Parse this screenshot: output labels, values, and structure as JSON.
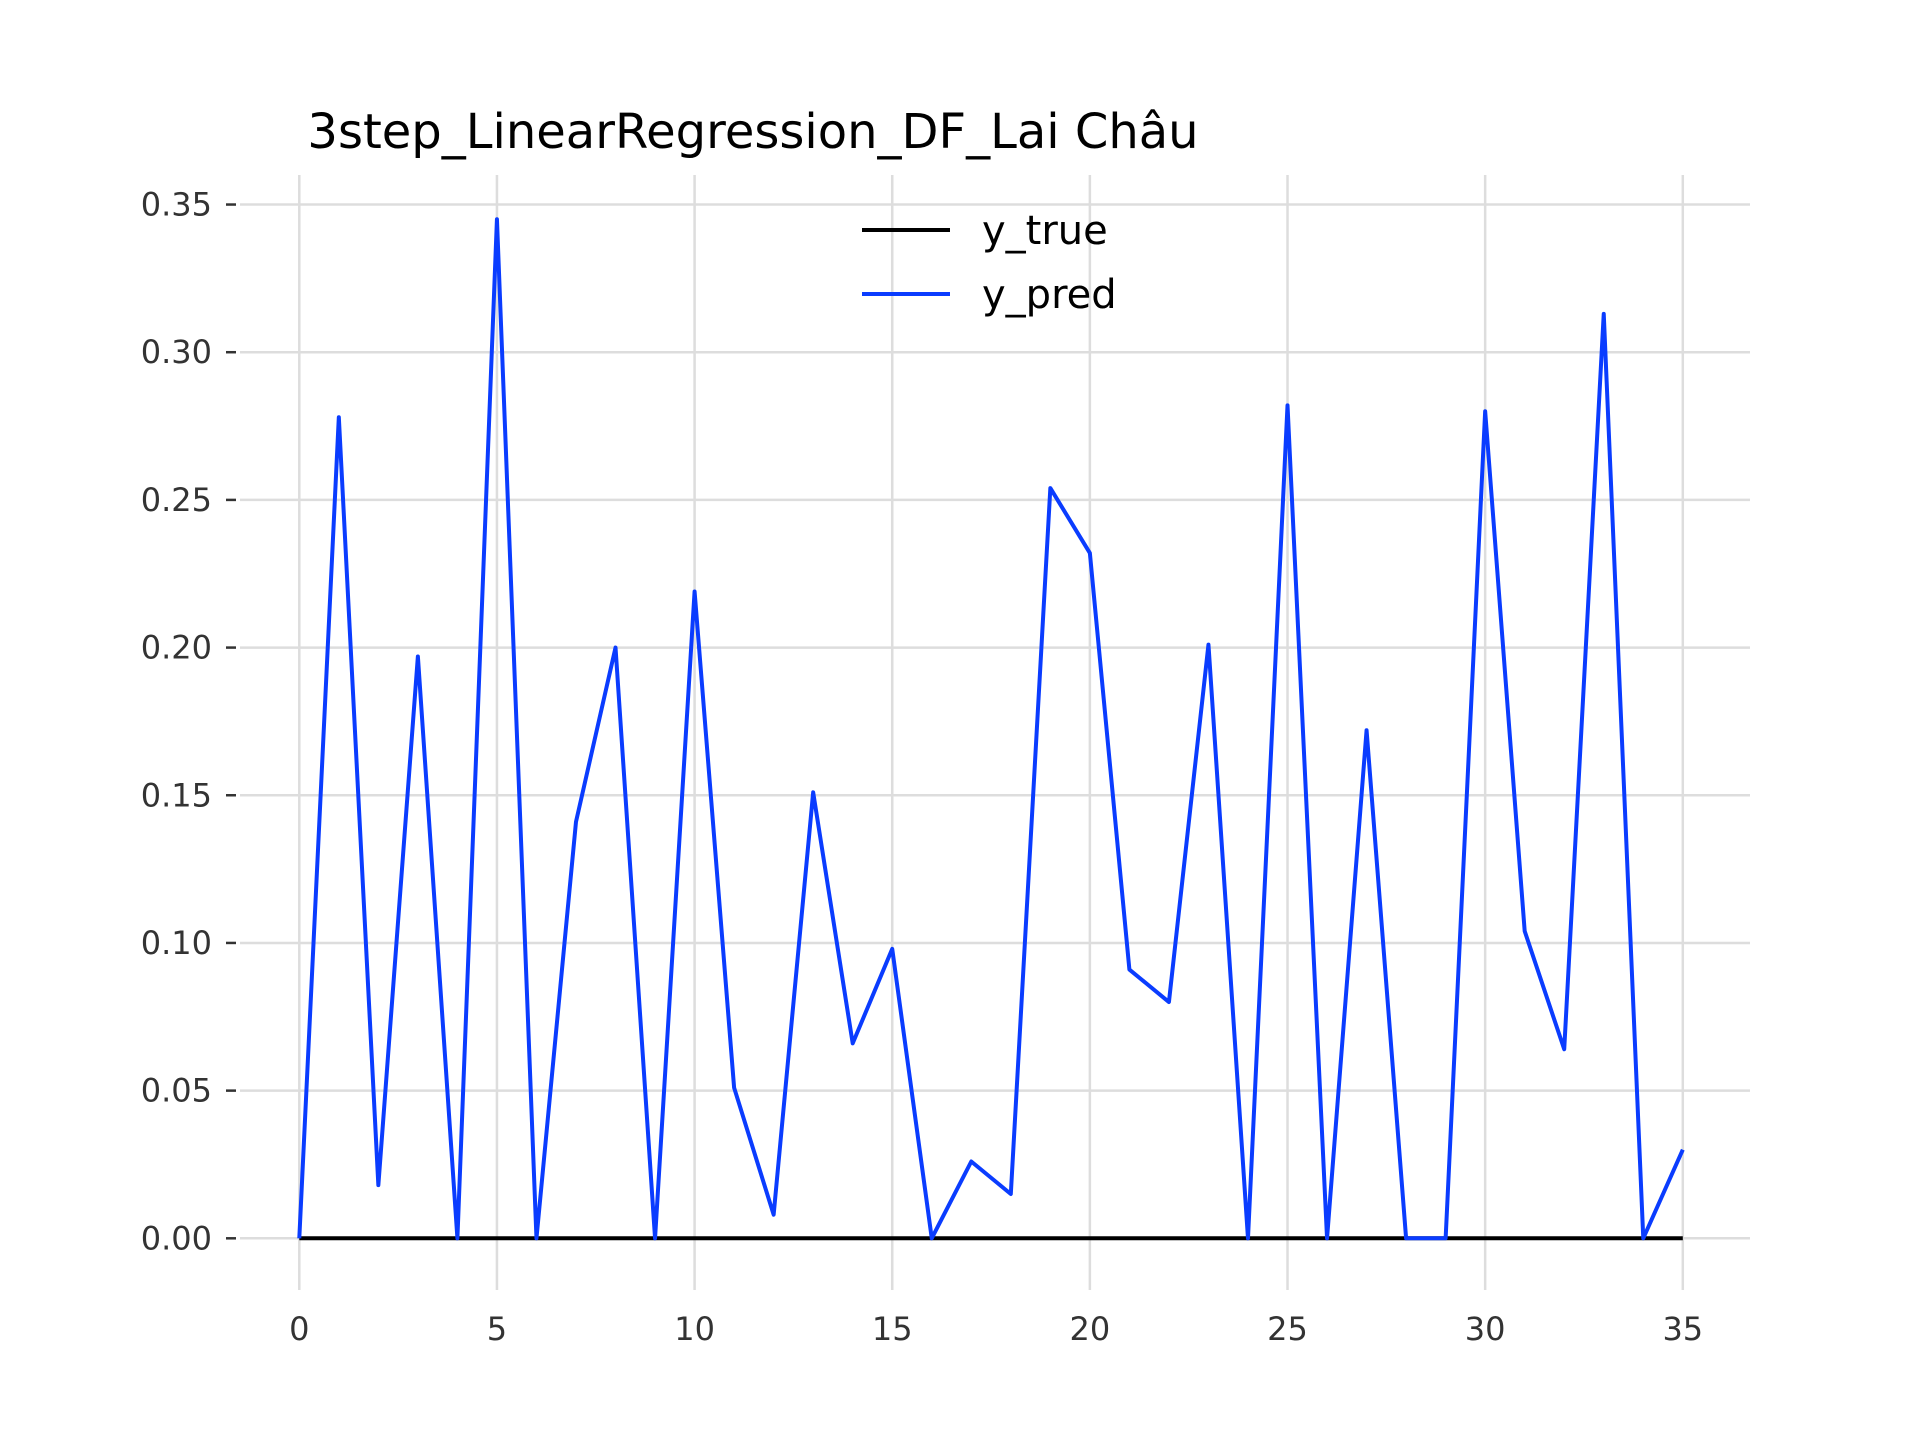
{
  "chart_data": {
    "type": "line",
    "title": "3step_LinearRegression_DF_Lai Châu",
    "xlabel": "",
    "ylabel": "",
    "x": [
      0,
      1,
      2,
      3,
      4,
      5,
      6,
      7,
      8,
      9,
      10,
      11,
      12,
      13,
      14,
      15,
      16,
      17,
      18,
      19,
      20,
      21,
      22,
      23,
      24,
      25,
      26,
      27,
      28,
      29,
      30,
      31,
      32,
      33,
      34,
      35
    ],
    "xlim": [
      -1.5,
      36.7
    ],
    "ylim": [
      -0.0175,
      0.36
    ],
    "x_ticks": [
      0,
      5,
      10,
      15,
      20,
      25,
      30,
      35
    ],
    "x_tick_labels": [
      "0",
      "5",
      "10",
      "15",
      "20",
      "25",
      "30",
      "35"
    ],
    "y_ticks": [
      0.0,
      0.05,
      0.1,
      0.15,
      0.2,
      0.25,
      0.3,
      0.35
    ],
    "y_tick_labels": [
      "0.00",
      "0.05",
      "0.10",
      "0.15",
      "0.20",
      "0.25",
      "0.30",
      "0.35"
    ],
    "grid": true,
    "legend_position": "top-center",
    "series": [
      {
        "name": "y_true",
        "color": "#000000",
        "values": [
          0,
          0,
          0,
          0,
          0,
          0,
          0,
          0,
          0,
          0,
          0,
          0,
          0,
          0,
          0,
          0,
          0,
          0,
          0,
          0,
          0,
          0,
          0,
          0,
          0,
          0,
          0,
          0,
          0,
          0,
          0,
          0,
          0,
          0,
          0,
          0
        ]
      },
      {
        "name": "y_pred",
        "color": "#0a3cff",
        "values": [
          0.0,
          0.278,
          0.018,
          0.197,
          0.0,
          0.345,
          0.0,
          0.141,
          0.2,
          0.0,
          0.219,
          0.051,
          0.008,
          0.151,
          0.066,
          0.098,
          0.0,
          0.026,
          0.015,
          0.254,
          0.232,
          0.091,
          0.08,
          0.201,
          0.0,
          0.282,
          0.0,
          0.172,
          0.0,
          0.0,
          0.28,
          0.104,
          0.064,
          0.313,
          0.0,
          0.03
        ]
      }
    ]
  }
}
